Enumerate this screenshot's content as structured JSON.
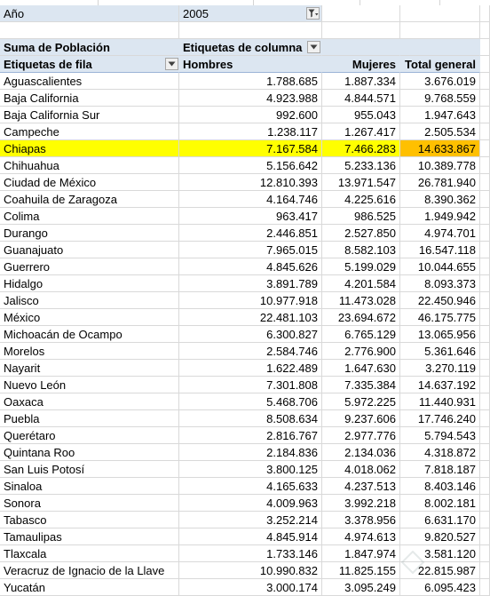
{
  "filter": {
    "field": "Año",
    "value": "2005"
  },
  "pivot": {
    "measure_label": "Suma de Población",
    "column_labels_title": "Etiquetas de columna",
    "row_labels_title": "Etiquetas de fila",
    "columns": [
      "Hombres",
      "Mujeres",
      "Total general"
    ],
    "highlight_row": "Chiapas",
    "rows": [
      {
        "name": "Aguascalientes",
        "hombres": "1.788.685",
        "mujeres": "1.887.334",
        "total": "3.676.019"
      },
      {
        "name": "Baja California",
        "hombres": "4.923.988",
        "mujeres": "4.844.571",
        "total": "9.768.559"
      },
      {
        "name": "Baja California Sur",
        "hombres": "992.600",
        "mujeres": "955.043",
        "total": "1.947.643"
      },
      {
        "name": "Campeche",
        "hombres": "1.238.117",
        "mujeres": "1.267.417",
        "total": "2.505.534"
      },
      {
        "name": "Chiapas",
        "hombres": "7.167.584",
        "mujeres": "7.466.283",
        "total": "14.633.867"
      },
      {
        "name": "Chihuahua",
        "hombres": "5.156.642",
        "mujeres": "5.233.136",
        "total": "10.389.778"
      },
      {
        "name": "Ciudad de México",
        "hombres": "12.810.393",
        "mujeres": "13.971.547",
        "total": "26.781.940"
      },
      {
        "name": "Coahuila de Zaragoza",
        "hombres": "4.164.746",
        "mujeres": "4.225.616",
        "total": "8.390.362"
      },
      {
        "name": "Colima",
        "hombres": "963.417",
        "mujeres": "986.525",
        "total": "1.949.942"
      },
      {
        "name": "Durango",
        "hombres": "2.446.851",
        "mujeres": "2.527.850",
        "total": "4.974.701"
      },
      {
        "name": "Guanajuato",
        "hombres": "7.965.015",
        "mujeres": "8.582.103",
        "total": "16.547.118"
      },
      {
        "name": "Guerrero",
        "hombres": "4.845.626",
        "mujeres": "5.199.029",
        "total": "10.044.655"
      },
      {
        "name": "Hidalgo",
        "hombres": "3.891.789",
        "mujeres": "4.201.584",
        "total": "8.093.373"
      },
      {
        "name": "Jalisco",
        "hombres": "10.977.918",
        "mujeres": "11.473.028",
        "total": "22.450.946"
      },
      {
        "name": "México",
        "hombres": "22.481.103",
        "mujeres": "23.694.672",
        "total": "46.175.775"
      },
      {
        "name": "Michoacán de Ocampo",
        "hombres": "6.300.827",
        "mujeres": "6.765.129",
        "total": "13.065.956"
      },
      {
        "name": "Morelos",
        "hombres": "2.584.746",
        "mujeres": "2.776.900",
        "total": "5.361.646"
      },
      {
        "name": "Nayarit",
        "hombres": "1.622.489",
        "mujeres": "1.647.630",
        "total": "3.270.119"
      },
      {
        "name": "Nuevo León",
        "hombres": "7.301.808",
        "mujeres": "7.335.384",
        "total": "14.637.192"
      },
      {
        "name": "Oaxaca",
        "hombres": "5.468.706",
        "mujeres": "5.972.225",
        "total": "11.440.931"
      },
      {
        "name": "Puebla",
        "hombres": "8.508.634",
        "mujeres": "9.237.606",
        "total": "17.746.240"
      },
      {
        "name": "Querétaro",
        "hombres": "2.816.767",
        "mujeres": "2.977.776",
        "total": "5.794.543"
      },
      {
        "name": "Quintana Roo",
        "hombres": "2.184.836",
        "mujeres": "2.134.036",
        "total": "4.318.872"
      },
      {
        "name": "San Luis Potosí",
        "hombres": "3.800.125",
        "mujeres": "4.018.062",
        "total": "7.818.187"
      },
      {
        "name": "Sinaloa",
        "hombres": "4.165.633",
        "mujeres": "4.237.513",
        "total": "8.403.146"
      },
      {
        "name": "Sonora",
        "hombres": "4.009.963",
        "mujeres": "3.992.218",
        "total": "8.002.181"
      },
      {
        "name": "Tabasco",
        "hombres": "3.252.214",
        "mujeres": "3.378.956",
        "total": "6.631.170"
      },
      {
        "name": "Tamaulipas",
        "hombres": "4.845.914",
        "mujeres": "4.974.613",
        "total": "9.820.527"
      },
      {
        "name": "Tlaxcala",
        "hombres": "1.733.146",
        "mujeres": "1.847.974",
        "total": "3.581.120"
      },
      {
        "name": "Veracruz de Ignacio de la Llave",
        "hombres": "10.990.832",
        "mujeres": "11.825.155",
        "total": "22.815.987"
      },
      {
        "name": "Yucatán",
        "hombres": "3.000.174",
        "mujeres": "3.095.249",
        "total": "6.095.423"
      }
    ]
  },
  "icons": {
    "filter_dropdown": "filter-funnel-icon",
    "dropdown": "chevron-down-icon"
  },
  "colors": {
    "header_bg": "#dce6f1",
    "highlight_row": "#ffff00",
    "highlight_total": "#ffc000",
    "grid": "#d9d9d9"
  }
}
